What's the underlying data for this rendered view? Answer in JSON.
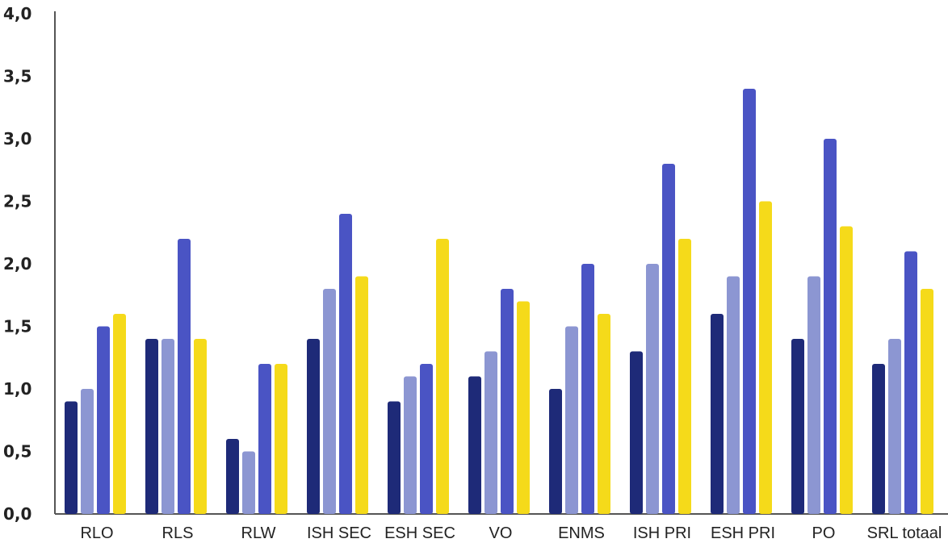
{
  "chart_data": {
    "type": "bar",
    "title": "",
    "xlabel": "",
    "ylabel": "",
    "ylim": [
      0,
      4
    ],
    "grid": false,
    "legend": "none",
    "yticks": [
      {
        "value": 0,
        "label": "0,0"
      },
      {
        "value": 0.5,
        "label": "0,5"
      },
      {
        "value": 1,
        "label": "1,0"
      },
      {
        "value": 1.5,
        "label": "1,5"
      },
      {
        "value": 2,
        "label": "2,0"
      },
      {
        "value": 2.5,
        "label": "2,5"
      },
      {
        "value": 3,
        "label": "3,0"
      },
      {
        "value": 3.5,
        "label": "3,5"
      },
      {
        "value": 4,
        "label": "4,0"
      }
    ],
    "categories": [
      "RLO",
      "RLS",
      "RLW",
      "ISH SEC",
      "ESH SEC",
      "VO",
      "ENMS",
      "ISH PRI",
      "ESH PRI",
      "PO",
      "SRL totaal"
    ],
    "series": [
      {
        "color": "#1e2a78",
        "values": [
          0.9,
          1.4,
          0.6,
          1.4,
          0.9,
          1.1,
          1.0,
          1.3,
          1.6,
          1.4,
          1.2
        ]
      },
      {
        "color": "#8c96d2",
        "values": [
          1.0,
          1.4,
          0.5,
          1.8,
          1.1,
          1.3,
          1.5,
          2.0,
          1.9,
          1.9,
          1.4
        ]
      },
      {
        "color": "#4a54c4",
        "values": [
          1.5,
          2.2,
          1.2,
          2.4,
          1.2,
          1.8,
          2.0,
          2.8,
          3.4,
          3.0,
          2.1
        ]
      },
      {
        "color": "#f5da1a",
        "values": [
          1.6,
          1.4,
          1.2,
          1.9,
          2.2,
          1.7,
          1.6,
          2.2,
          2.5,
          2.3,
          1.8
        ]
      }
    ]
  }
}
